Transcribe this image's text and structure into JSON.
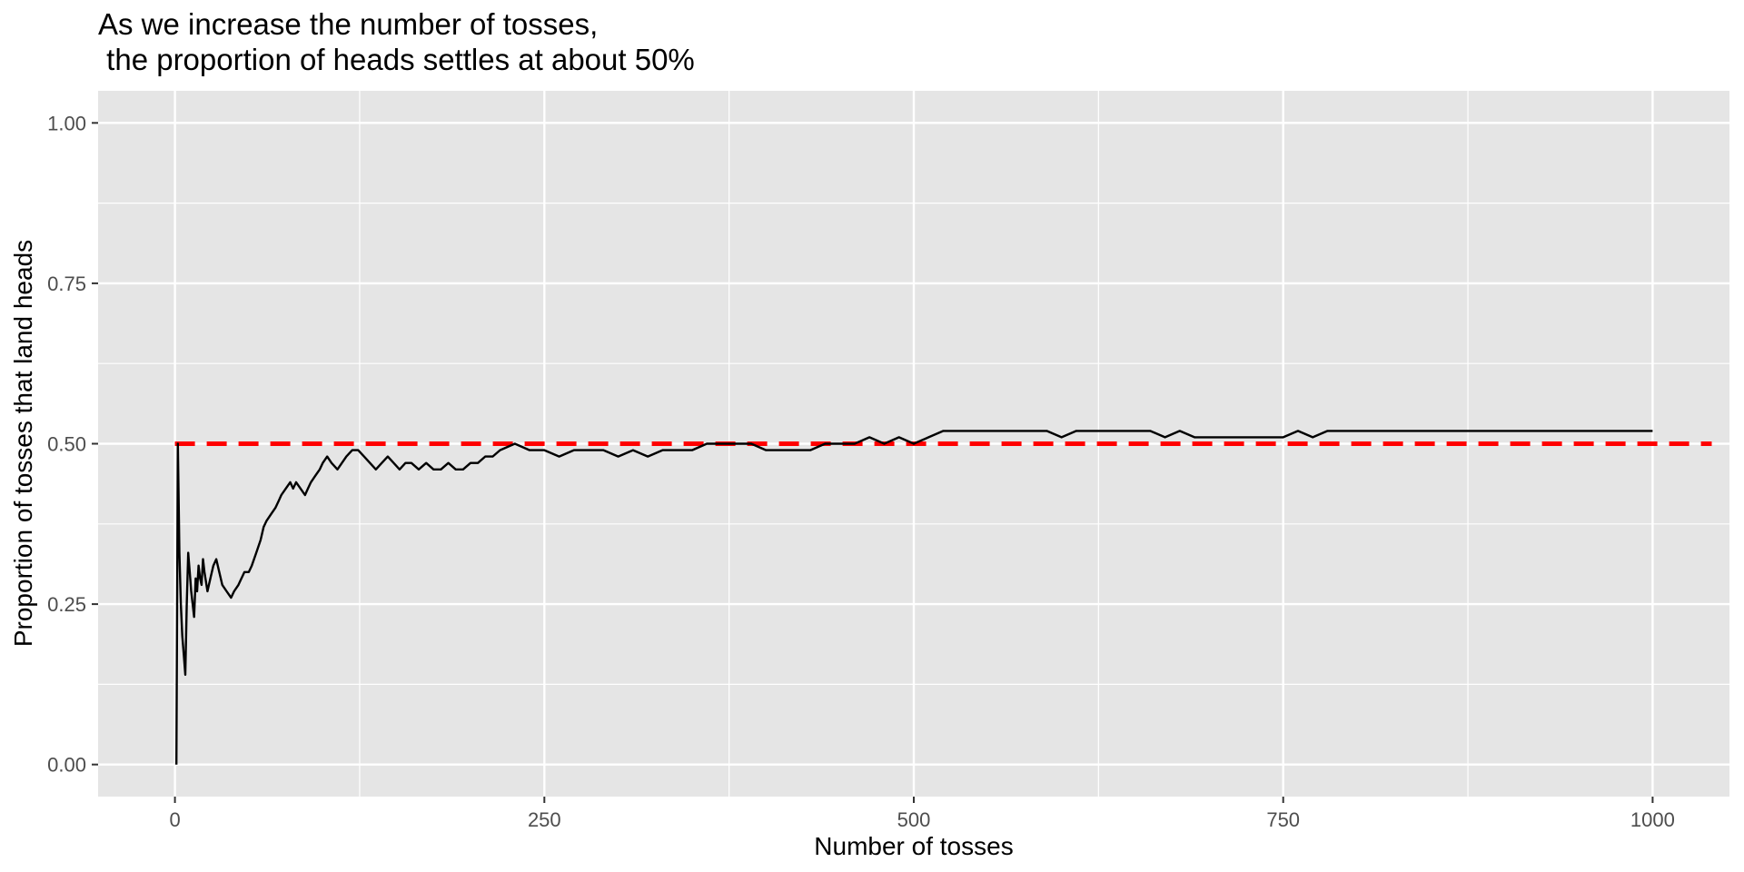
{
  "chart_data": {
    "type": "line",
    "title_lines": [
      "As we increase the number of tosses,",
      " the proportion of heads settles at about 50%"
    ],
    "xlabel": "Number of tosses",
    "ylabel": "Proportion of tosses that land heads",
    "xlim": [
      -52,
      1052
    ],
    "ylim": [
      -0.05,
      1.05
    ],
    "x_ticks": [
      0,
      250,
      500,
      750,
      1000
    ],
    "x_tick_labels": [
      "0",
      "250",
      "500",
      "750",
      "1000"
    ],
    "y_ticks": [
      0,
      0.25,
      0.5,
      0.75,
      1
    ],
    "y_tick_labels": [
      "0.00",
      "0.25",
      "0.50",
      "0.75",
      "1.00"
    ],
    "grid": true,
    "panel_background": "#e5e5e5",
    "grid_color": "#ffffff",
    "series": [
      {
        "color": "#000000",
        "x": [
          1,
          2,
          3,
          4,
          5,
          6,
          7,
          8,
          9,
          10,
          11,
          12,
          13,
          14,
          15,
          16,
          17,
          18,
          19,
          20,
          22,
          24,
          26,
          28,
          30,
          32,
          35,
          38,
          40,
          43,
          45,
          47,
          50,
          52,
          55,
          58,
          60,
          62,
          65,
          68,
          70,
          72,
          75,
          78,
          80,
          82,
          85,
          88,
          90,
          92,
          95,
          98,
          100,
          103,
          106,
          110,
          113,
          116,
          120,
          124,
          128,
          132,
          136,
          140,
          144,
          148,
          152,
          156,
          160,
          165,
          170,
          175,
          180,
          185,
          190,
          195,
          200,
          205,
          210,
          215,
          220,
          230,
          240,
          250,
          260,
          270,
          280,
          290,
          300,
          310,
          320,
          330,
          340,
          350,
          360,
          370,
          380,
          390,
          400,
          410,
          420,
          430,
          440,
          450,
          460,
          470,
          480,
          490,
          500,
          510,
          520,
          530,
          540,
          550,
          560,
          570,
          580,
          590,
          600,
          610,
          620,
          630,
          640,
          650,
          660,
          670,
          680,
          690,
          700,
          710,
          720,
          730,
          740,
          750,
          760,
          770,
          780,
          790,
          800,
          810,
          820,
          830,
          840,
          850,
          860,
          870,
          880,
          890,
          900,
          910,
          920,
          930,
          940,
          950,
          960,
          970,
          980,
          990,
          1000
        ],
        "y": [
          0,
          0.5,
          0.33,
          0.25,
          0.2,
          0.17,
          0.14,
          0.25,
          0.33,
          0.3,
          0.27,
          0.25,
          0.23,
          0.29,
          0.27,
          0.31,
          0.29,
          0.28,
          0.32,
          0.3,
          0.27,
          0.29,
          0.31,
          0.32,
          0.3,
          0.28,
          0.27,
          0.26,
          0.27,
          0.28,
          0.29,
          0.3,
          0.3,
          0.31,
          0.33,
          0.35,
          0.37,
          0.38,
          0.39,
          0.4,
          0.41,
          0.42,
          0.43,
          0.44,
          0.43,
          0.44,
          0.43,
          0.42,
          0.43,
          0.44,
          0.45,
          0.46,
          0.47,
          0.48,
          0.47,
          0.46,
          0.47,
          0.48,
          0.49,
          0.49,
          0.48,
          0.47,
          0.46,
          0.47,
          0.48,
          0.47,
          0.46,
          0.47,
          0.47,
          0.46,
          0.47,
          0.46,
          0.46,
          0.47,
          0.46,
          0.46,
          0.47,
          0.47,
          0.48,
          0.48,
          0.49,
          0.5,
          0.49,
          0.49,
          0.48,
          0.49,
          0.49,
          0.49,
          0.48,
          0.49,
          0.48,
          0.49,
          0.49,
          0.49,
          0.5,
          0.5,
          0.5,
          0.5,
          0.49,
          0.49,
          0.49,
          0.49,
          0.5,
          0.5,
          0.5,
          0.51,
          0.5,
          0.51,
          0.5,
          0.51,
          0.52,
          0.52,
          0.52,
          0.52,
          0.52,
          0.52,
          0.52,
          0.52,
          0.51,
          0.52,
          0.52,
          0.52,
          0.52,
          0.52,
          0.52,
          0.51,
          0.52,
          0.51,
          0.51,
          0.51,
          0.51,
          0.51,
          0.51,
          0.51,
          0.52,
          0.51,
          0.52,
          0.52,
          0.52,
          0.52,
          0.52,
          0.52,
          0.52,
          0.52,
          0.52,
          0.52,
          0.52,
          0.52,
          0.52,
          0.52,
          0.52,
          0.52,
          0.52,
          0.52,
          0.52,
          0.52,
          0.52,
          0.52,
          0.52
        ]
      }
    ],
    "reference_line": {
      "type": "hline",
      "y": 0.5,
      "x_range": [
        0,
        1040
      ],
      "color": "#ff0000",
      "style": "dashed"
    }
  }
}
